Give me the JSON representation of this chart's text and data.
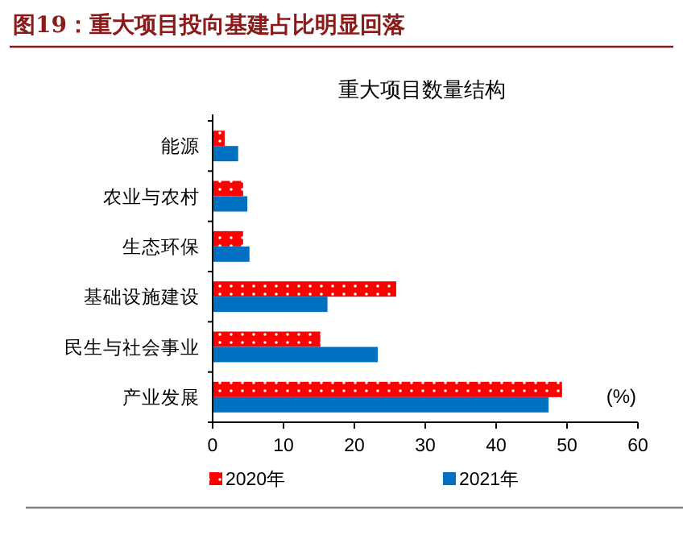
{
  "chart_data": {
    "type": "bar",
    "orientation": "horizontal",
    "title": "图19：重大项目投向基建占比明显回落",
    "subtitle": "重大项目数量结构",
    "xlabel": "(%)",
    "categories": [
      "能源",
      "农业与农村",
      "生态环保",
      "基础设施建设",
      "民生与社会事业",
      "产业发展"
    ],
    "series": [
      {
        "name": "2020年",
        "color": "#ff0000",
        "values": [
          1.7,
          4.3,
          4.3,
          25.9,
          15.2,
          49.3
        ]
      },
      {
        "name": "2021年",
        "color": "#0070c0",
        "values": [
          3.6,
          4.9,
          5.2,
          16.2,
          23.3,
          47.4
        ]
      }
    ],
    "xlim": [
      0,
      60
    ],
    "xticks": [
      0,
      10,
      20,
      30,
      40,
      50,
      60
    ],
    "legend": "bottom",
    "grid": false
  }
}
